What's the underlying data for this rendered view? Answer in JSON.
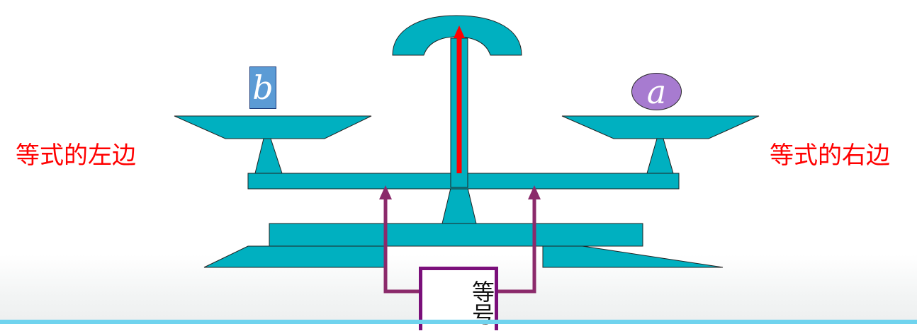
{
  "labels": {
    "left_side": "等式的左边",
    "right_side": "等式的右边",
    "left_pan_item": "b",
    "right_pan_item": "a",
    "equal_sign": "等号"
  },
  "colors": {
    "scale": "#00b0c0",
    "pointer": "#ff0000",
    "arrows": "#8b2a6b",
    "label_text": "#ff0000",
    "box_b": "#5b9bd5",
    "ball_a": "#a77bd0",
    "equal_border": "#7a0f7a",
    "bottom_line": "#6fd3ee"
  }
}
